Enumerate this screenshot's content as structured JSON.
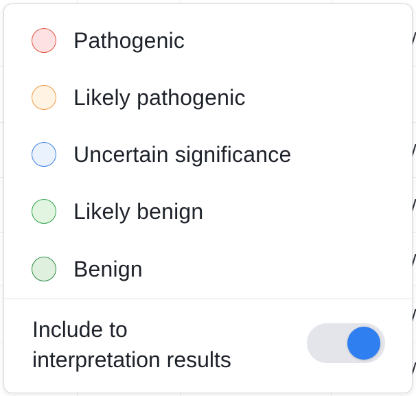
{
  "options": [
    {
      "label": "Pathogenic",
      "fill": "#fde1e3",
      "stroke": "#e0533f"
    },
    {
      "label": "Likely pathogenic",
      "fill": "#fff4e3",
      "stroke": "#ee9c45"
    },
    {
      "label": "Uncertain significance",
      "fill": "#eaf2fd",
      "stroke": "#3c7fe0"
    },
    {
      "label": "Likely benign",
      "fill": "#e1f5e1",
      "stroke": "#2fa24a"
    },
    {
      "label": "Benign",
      "fill": "#dff0df",
      "stroke": "#2c8a44"
    }
  ],
  "include": {
    "label_line1": "Include to",
    "label_line2": "interpretation results",
    "toggle_on": true,
    "toggle_color": "#2f7ff0"
  }
}
